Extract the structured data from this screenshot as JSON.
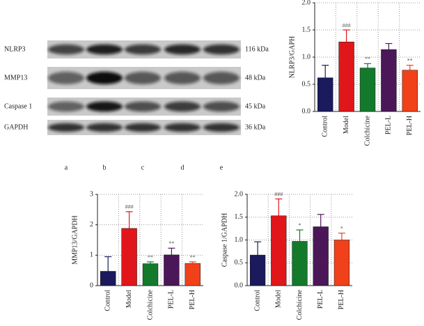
{
  "blot": {
    "rows": [
      {
        "label": "NLRP3",
        "size": "116 kDa"
      },
      {
        "label": "MMP13",
        "size": "48 kDa"
      },
      {
        "label": "Caspase 1",
        "size": "45 kDa"
      },
      {
        "label": "GAPDH",
        "size": "36 kDa"
      }
    ],
    "lanes": [
      "a",
      "b",
      "c",
      "d",
      "e"
    ]
  },
  "chart_data": [
    {
      "type": "bar",
      "y_label": "NLRP3/GAPH",
      "categories": [
        "Control",
        "Model",
        "Colchicine",
        "PEL-L",
        "PEL-H"
      ],
      "values": [
        0.62,
        1.28,
        0.8,
        1.14,
        0.76
      ],
      "errors": [
        0.23,
        0.22,
        0.08,
        0.11,
        0.09
      ],
      "annotations": [
        null,
        "###",
        "**",
        null,
        "**"
      ],
      "colors": [
        "#1b1a5c",
        "#e0161b",
        "#137a2c",
        "#4b1759",
        "#f0411b"
      ],
      "ylim": [
        0,
        2
      ],
      "yticks": [
        {
          "value": 0,
          "label": "0.0"
        },
        0.5,
        {
          "value": 1,
          "label": "1.0"
        },
        1.5,
        {
          "value": 2,
          "label": "2.0"
        }
      ],
      "grid": true
    },
    {
      "type": "bar",
      "y_label": "MMP13/GAPDH",
      "categories": [
        "Control",
        "Model",
        "Colchicine",
        "PEL-L",
        "PEL-H"
      ],
      "values": [
        0.47,
        1.88,
        0.72,
        1.01,
        0.73
      ],
      "errors": [
        0.48,
        0.55,
        0.06,
        0.22,
        0.05
      ],
      "annotations": [
        null,
        "###",
        "**",
        "**",
        "**"
      ],
      "colors": [
        "#1b1a5c",
        "#e0161b",
        "#137a2c",
        "#4b1759",
        "#f0411b"
      ],
      "ylim": [
        0,
        3
      ],
      "yticks": [
        0,
        1,
        2,
        3
      ],
      "grid": true
    },
    {
      "type": "bar",
      "y_label": "Caspase 1/GAPDH",
      "categories": [
        "Control",
        "Model",
        "Colchicine",
        "PEL-L",
        "PEL-H"
      ],
      "values": [
        0.67,
        1.53,
        0.97,
        1.29,
        1.0
      ],
      "errors": [
        0.29,
        0.37,
        0.25,
        0.27,
        0.15
      ],
      "annotations": [
        null,
        "###",
        "*",
        null,
        "*"
      ],
      "colors": [
        "#1b1a5c",
        "#e0161b",
        "#137a2c",
        "#4b1759",
        "#f0411b"
      ],
      "ylim": [
        0,
        2
      ],
      "yticks": [
        {
          "value": 0,
          "label": "0.0"
        },
        0.5,
        {
          "value": 1,
          "label": "1.0"
        },
        1.5,
        {
          "value": 2,
          "label": "2.0"
        }
      ],
      "grid": true
    }
  ]
}
